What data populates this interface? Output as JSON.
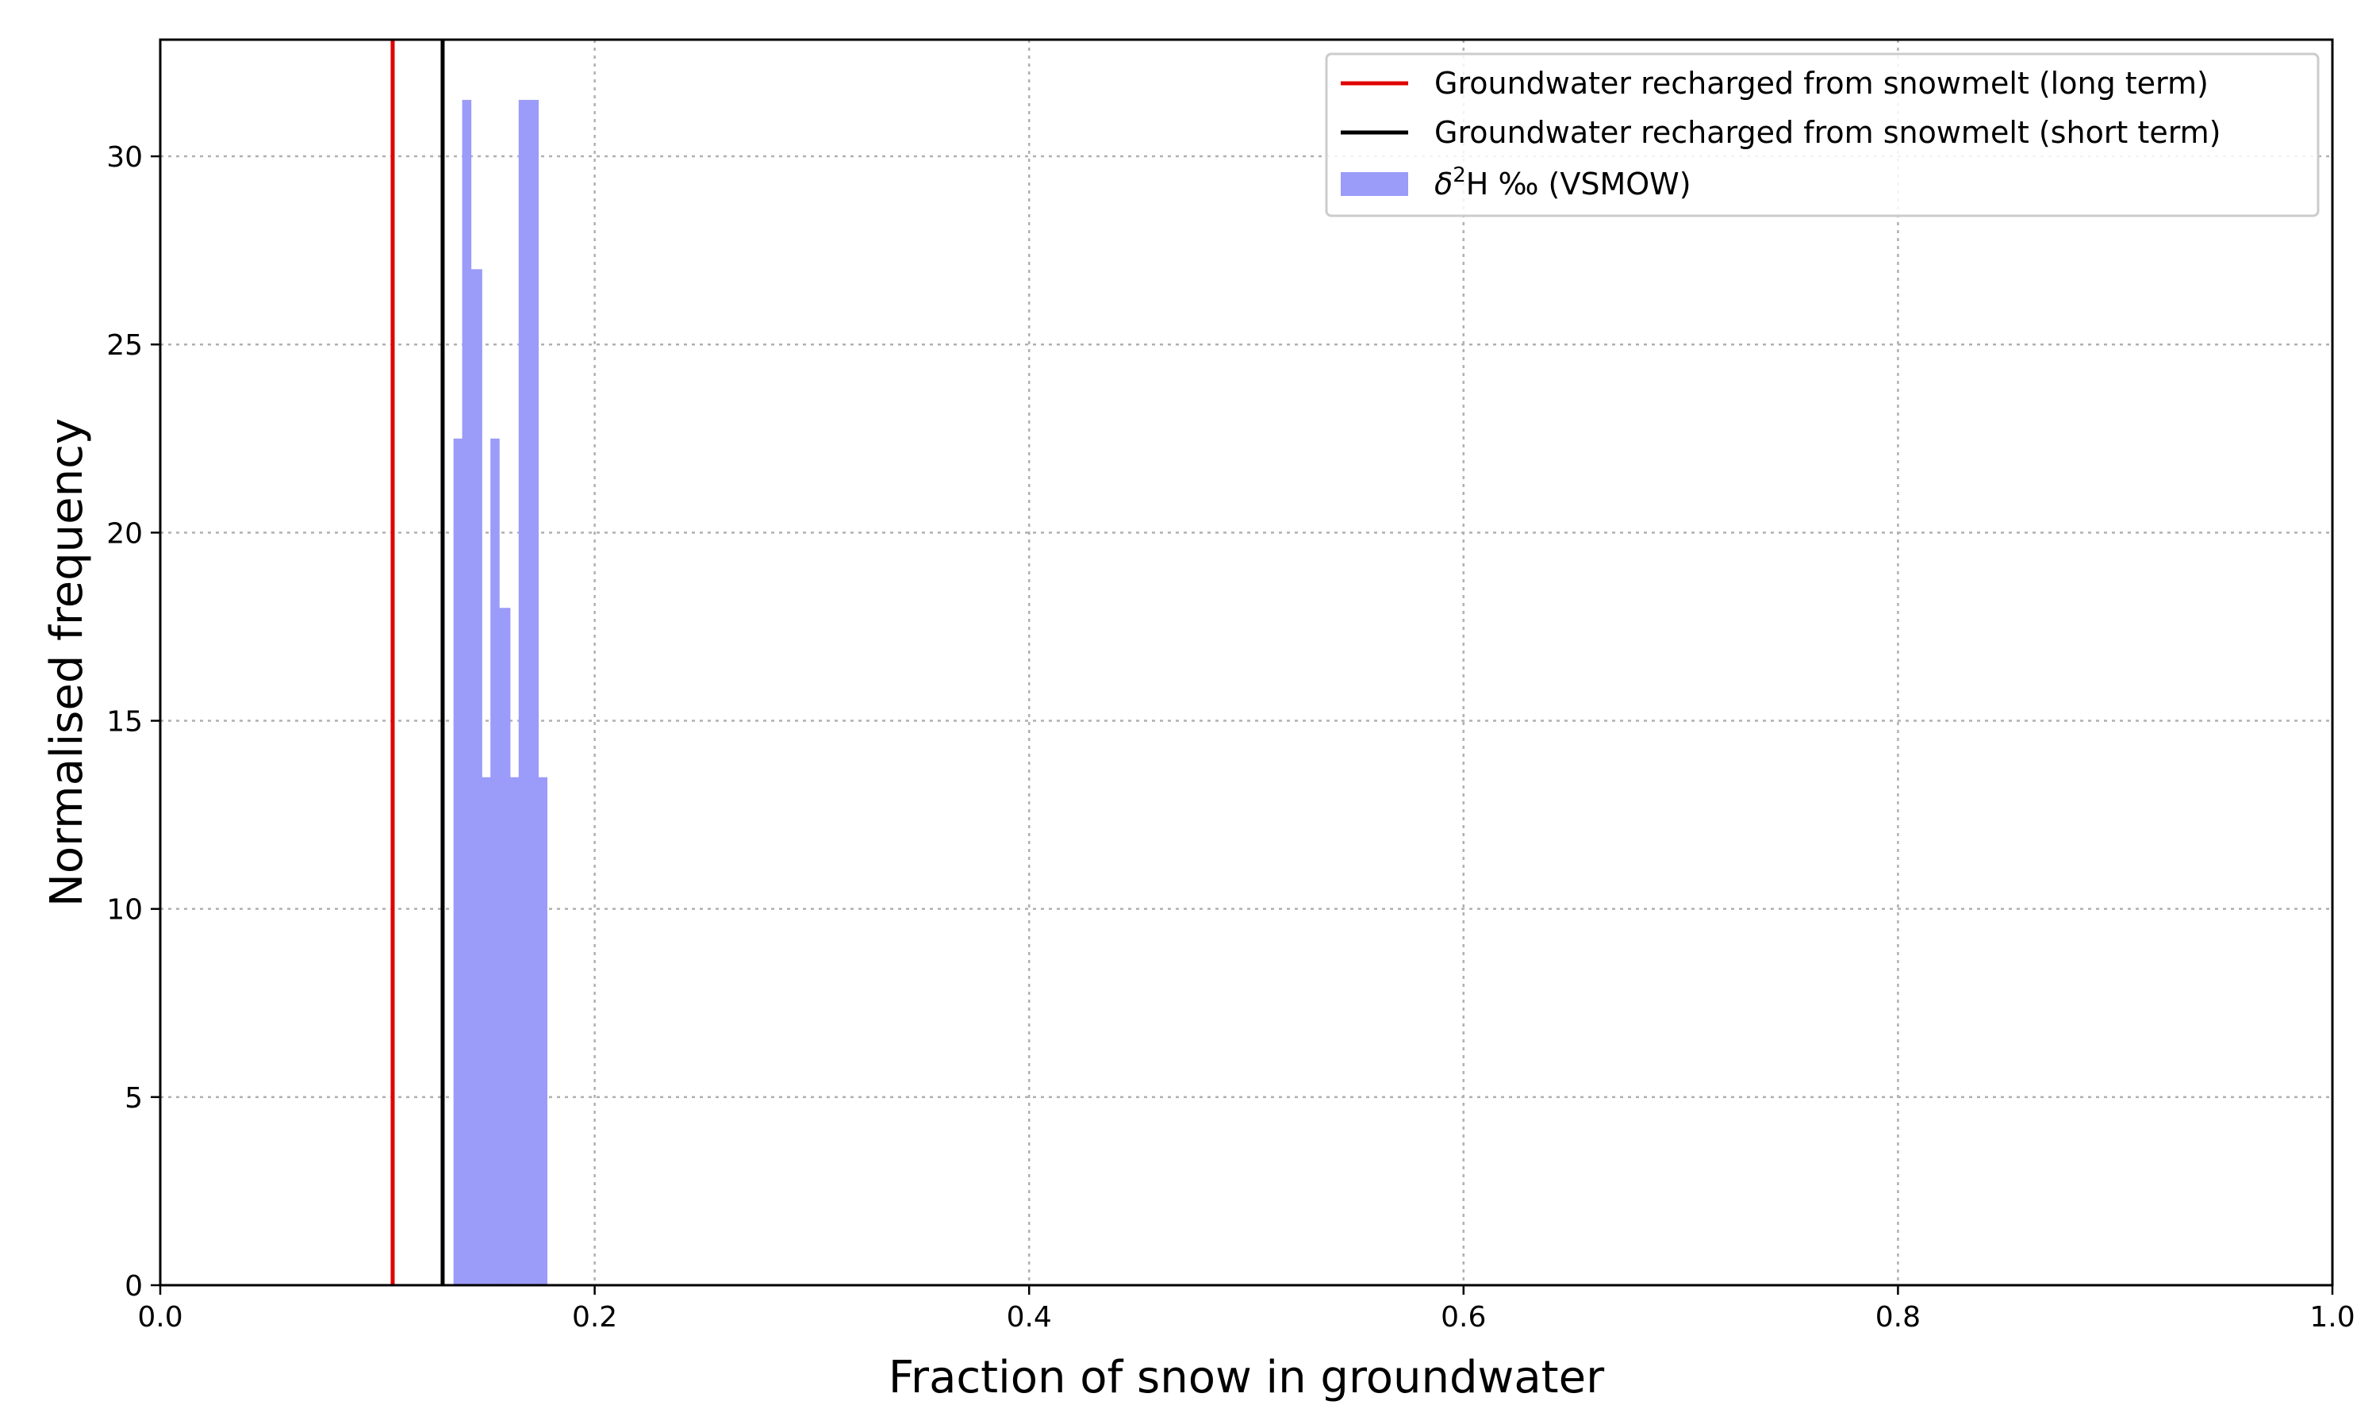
{
  "chart_data": {
    "type": "bar",
    "title": "",
    "xlabel": "Fraction of snow in groundwater",
    "ylabel": "Normalised frequency",
    "xlim": [
      0.0,
      1.0
    ],
    "ylim": [
      0,
      33.1
    ],
    "xticks": [
      "0.0",
      "0.2",
      "0.4",
      "0.6",
      "0.8",
      "1.0"
    ],
    "yticks": [
      "0",
      "5",
      "10",
      "15",
      "20",
      "25",
      "30"
    ],
    "grid": true,
    "legend_position": "top-right",
    "colors": {
      "histogram": "#9b9bf9",
      "long_term_line": "#e00000",
      "short_term_line": "#000000",
      "grid": "#b0b0b0"
    },
    "series": [
      {
        "name": "δ²H ‰ (VSMOW)",
        "kind": "histogram",
        "bins": [
          {
            "x0": 0.135,
            "x1": 0.139,
            "value": 22.5
          },
          {
            "x0": 0.139,
            "x1": 0.143,
            "value": 31.5
          },
          {
            "x0": 0.143,
            "x1": 0.148,
            "value": 27.0
          },
          {
            "x0": 0.148,
            "x1": 0.152,
            "value": 13.5
          },
          {
            "x0": 0.152,
            "x1": 0.156,
            "value": 22.5
          },
          {
            "x0": 0.156,
            "x1": 0.161,
            "value": 18.0
          },
          {
            "x0": 0.161,
            "x1": 0.165,
            "value": 13.5
          },
          {
            "x0": 0.165,
            "x1": 0.169,
            "value": 31.5
          },
          {
            "x0": 0.169,
            "x1": 0.174,
            "value": 31.5
          },
          {
            "x0": 0.174,
            "x1": 0.178,
            "value": 13.5
          }
        ]
      },
      {
        "name": "Groundwater recharged from snowmelt (long term)",
        "kind": "vline",
        "x": 0.107
      },
      {
        "name": "Groundwater recharged from snowmelt (short term)",
        "kind": "vline",
        "x": 0.13
      }
    ],
    "legend": [
      {
        "label": "Groundwater recharged from snowmelt (long term)",
        "symbol": "line",
        "color": "#e00000"
      },
      {
        "label": "Groundwater recharged from snowmelt (short term)",
        "symbol": "line",
        "color": "#000000"
      },
      {
        "label_prefix": "δ",
        "label_sup": "2",
        "label_suffix": "H ‰ (VSMOW)",
        "symbol": "patch",
        "color": "#9b9bf9"
      }
    ]
  }
}
